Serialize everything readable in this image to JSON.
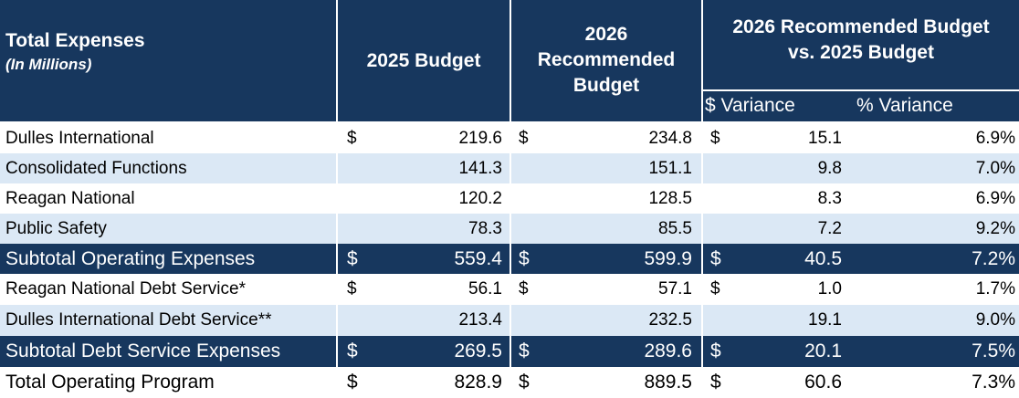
{
  "header": {
    "col1_title": "Total Expenses",
    "col1_subtitle": "(In Millions)",
    "col2": "2025 Budget",
    "col3_line1": "2026",
    "col3_line2": "Recommended",
    "col3_line3": "Budget",
    "col4_line1": "2026 Recommended Budget",
    "col4_line2": "vs. 2025 Budget",
    "sub_var_dollar": "$ Variance",
    "sub_var_pct": "% Variance"
  },
  "rows": [
    {
      "label": "Dulles International",
      "cur1": "$",
      "b2025": "219.6",
      "cur2": "$",
      "b2026": "234.8",
      "cur3": "$",
      "var": "15.1",
      "pct": "6.9%"
    },
    {
      "label": "Consolidated Functions",
      "cur1": "",
      "b2025": "141.3",
      "cur2": "",
      "b2026": "151.1",
      "cur3": "",
      "var": "9.8",
      "pct": "7.0%"
    },
    {
      "label": "Reagan National",
      "cur1": "",
      "b2025": "120.2",
      "cur2": "",
      "b2026": "128.5",
      "cur3": "",
      "var": "8.3",
      "pct": "6.9%"
    },
    {
      "label": "Public Safety",
      "cur1": "",
      "b2025": "78.3",
      "cur2": "",
      "b2026": "85.5",
      "cur3": "",
      "var": "7.2",
      "pct": "9.2%"
    },
    {
      "label": "Subtotal Operating Expenses",
      "cur1": "$",
      "b2025": "559.4",
      "cur2": "$",
      "b2026": "599.9",
      "cur3": "$",
      "var": "40.5",
      "pct": "7.2%"
    },
    {
      "label": "Reagan National Debt Service*",
      "cur1": "$",
      "b2025": "56.1",
      "cur2": "$",
      "b2026": "57.1",
      "cur3": "$",
      "var": "1.0",
      "pct": "1.7%"
    },
    {
      "label": "Dulles International Debt Service**",
      "cur1": "",
      "b2025": "213.4",
      "cur2": "",
      "b2026": "232.5",
      "cur3": "",
      "var": "19.1",
      "pct": "9.0%"
    },
    {
      "label": "Subtotal Debt Service Expenses",
      "cur1": "$",
      "b2025": "269.5",
      "cur2": "$",
      "b2026": "289.6",
      "cur3": "$",
      "var": "20.1",
      "pct": "7.5%"
    },
    {
      "label": "Total Operating Program",
      "cur1": "$",
      "b2025": "828.9",
      "cur2": "$",
      "b2026": "889.5",
      "cur3": "$",
      "var": "60.6",
      "pct": "7.3%"
    }
  ],
  "colors": {
    "header_bg": "#17375e",
    "light_row": "#dbe8f5",
    "white_row": "#ffffff",
    "header_text": "#ffffff"
  }
}
